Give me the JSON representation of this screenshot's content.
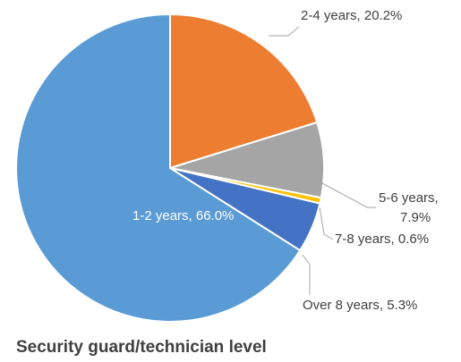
{
  "chart_data": {
    "type": "pie",
    "title": "Security guard/technician level",
    "categories": [
      "2-4 years",
      "5-6 years",
      "7-8 years",
      "Over 8 years",
      "1-2 years"
    ],
    "values": [
      20.2,
      7.9,
      0.6,
      5.3,
      66.0
    ],
    "colors": [
      "#ed7d31",
      "#a5a5a5",
      "#ffc000",
      "#4472c4",
      "#5b9bd5"
    ],
    "data_labels": [
      "2-4 years, 20.2%",
      [
        "5-6 years,",
        "7.9%"
      ],
      "7-8 years, 0.6%",
      "Over 8 years, 5.3%",
      "1-2 years, 66.0%"
    ]
  }
}
